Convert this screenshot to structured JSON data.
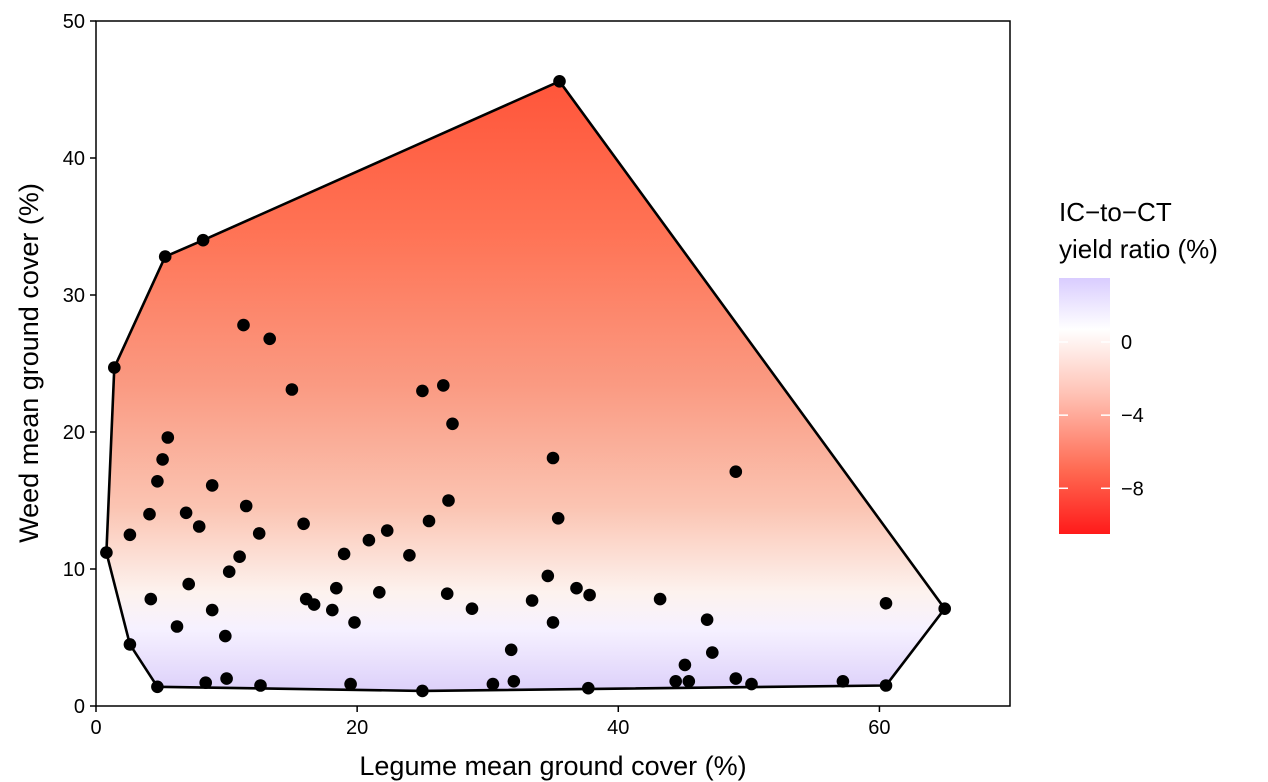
{
  "chart_data": {
    "type": "scatter",
    "title": "",
    "xlabel": "Legume mean ground cover (%)",
    "ylabel": "Weed mean ground cover (%)",
    "xlim": [
      0,
      70
    ],
    "ylim": [
      0,
      50
    ],
    "x_ticks": [
      "0",
      "20",
      "40",
      "60"
    ],
    "y_ticks": [
      "0",
      "10",
      "20",
      "30",
      "40",
      "50"
    ],
    "grid": false,
    "legend": {
      "title_line1": "IC−to−CT",
      "title_line2": "yield ratio (%)",
      "placement": "right",
      "scale_min": -10.5,
      "scale_max": 3.5,
      "ticks": [
        {
          "value": 0,
          "label": "0"
        },
        {
          "value": -4,
          "label": "−4"
        },
        {
          "value": -8,
          "label": "−8"
        }
      ],
      "low_color": "#ff1a1a",
      "mid_color": "#ffffff",
      "high_color": "#d9ccff"
    },
    "surface_note_colors": {
      "top": "#ff5a3c",
      "middle": "#fad6c8",
      "bottom": "#ddd2fb"
    },
    "hull": [
      [
        35.5,
        45.6
      ],
      [
        65.0,
        7.1
      ],
      [
        60.5,
        1.5
      ],
      [
        25.0,
        1.1
      ],
      [
        4.7,
        1.4
      ],
      [
        2.6,
        4.5
      ],
      [
        0.8,
        11.2
      ],
      [
        1.4,
        24.7
      ],
      [
        5.3,
        32.8
      ],
      [
        8.2,
        34.0
      ]
    ],
    "points": [
      [
        35.5,
        45.6
      ],
      [
        8.2,
        34.0
      ],
      [
        5.3,
        32.8
      ],
      [
        11.3,
        27.8
      ],
      [
        13.3,
        26.8
      ],
      [
        1.4,
        24.7
      ],
      [
        15.0,
        23.1
      ],
      [
        25.0,
        23.0
      ],
      [
        26.6,
        23.4
      ],
      [
        27.3,
        20.6
      ],
      [
        5.5,
        19.6
      ],
      [
        5.1,
        18.0
      ],
      [
        35.0,
        18.1
      ],
      [
        49.0,
        17.1
      ],
      [
        4.7,
        16.4
      ],
      [
        8.9,
        16.1
      ],
      [
        11.5,
        14.6
      ],
      [
        27.0,
        15.0
      ],
      [
        4.1,
        14.0
      ],
      [
        6.9,
        14.1
      ],
      [
        35.4,
        13.7
      ],
      [
        7.9,
        13.1
      ],
      [
        15.9,
        13.3
      ],
      [
        25.5,
        13.5
      ],
      [
        2.6,
        12.5
      ],
      [
        12.5,
        12.6
      ],
      [
        22.3,
        12.8
      ],
      [
        20.9,
        12.1
      ],
      [
        0.8,
        11.2
      ],
      [
        11.0,
        10.9
      ],
      [
        19.0,
        11.1
      ],
      [
        24.0,
        11.0
      ],
      [
        10.2,
        9.8
      ],
      [
        34.6,
        9.5
      ],
      [
        7.1,
        8.9
      ],
      [
        18.4,
        8.6
      ],
      [
        21.7,
        8.3
      ],
      [
        26.9,
        8.2
      ],
      [
        36.8,
        8.6
      ],
      [
        37.8,
        8.1
      ],
      [
        4.2,
        7.8
      ],
      [
        16.1,
        7.8
      ],
      [
        16.7,
        7.4
      ],
      [
        33.4,
        7.7
      ],
      [
        43.2,
        7.8
      ],
      [
        8.9,
        7.0
      ],
      [
        18.1,
        7.0
      ],
      [
        28.8,
        7.1
      ],
      [
        60.5,
        7.5
      ],
      [
        65.0,
        7.1
      ],
      [
        19.8,
        6.1
      ],
      [
        35.0,
        6.1
      ],
      [
        46.8,
        6.3
      ],
      [
        6.2,
        5.8
      ],
      [
        9.9,
        5.1
      ],
      [
        2.6,
        4.5
      ],
      [
        31.8,
        4.1
      ],
      [
        47.2,
        3.9
      ],
      [
        45.1,
        3.0
      ],
      [
        10.0,
        2.0
      ],
      [
        49.0,
        2.0
      ],
      [
        8.4,
        1.7
      ],
      [
        44.4,
        1.8
      ],
      [
        45.4,
        1.8
      ],
      [
        50.2,
        1.6
      ],
      [
        57.2,
        1.8
      ],
      [
        12.6,
        1.5
      ],
      [
        19.5,
        1.6
      ],
      [
        30.4,
        1.6
      ],
      [
        32.0,
        1.8
      ],
      [
        4.7,
        1.4
      ],
      [
        37.7,
        1.3
      ],
      [
        60.5,
        1.5
      ],
      [
        25.0,
        1.1
      ]
    ]
  }
}
